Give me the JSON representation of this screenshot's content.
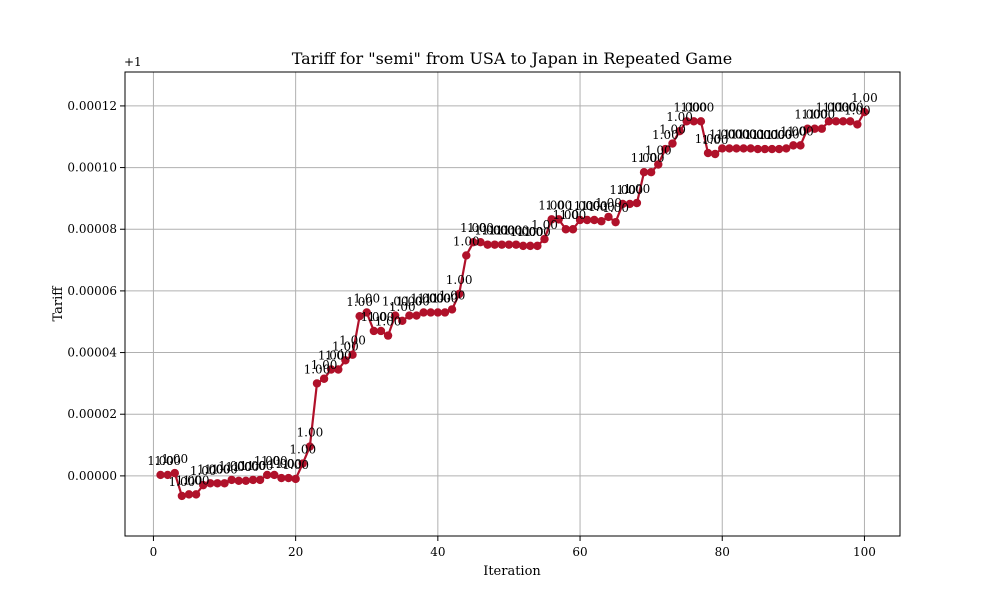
{
  "chart_data": {
    "type": "line",
    "title": "Tariff for \"semi\" from USA to Japan in Repeated Game",
    "xlabel": "Iteration",
    "ylabel": "Tariff",
    "offset_label": "+1",
    "xlim": [
      -4,
      105
    ],
    "ylim": [
      -1.95e-05,
      0.000131
    ],
    "x_ticks": [
      0,
      20,
      40,
      60,
      80,
      100
    ],
    "y_ticks": [
      0.0,
      2e-05,
      4e-05,
      6e-05,
      8e-05,
      0.0001,
      0.00012
    ],
    "y_tick_labels": [
      "0.00000",
      "0.00002",
      "0.00004",
      "0.00006",
      "0.00008",
      "0.00010",
      "0.00012"
    ],
    "grid": true,
    "legend": "none",
    "series": [
      {
        "color": "#b0112a",
        "marker": "circle",
        "point_label": "1.00",
        "x": [
          1,
          2,
          3,
          4,
          5,
          6,
          7,
          8,
          9,
          10,
          11,
          12,
          13,
          14,
          15,
          16,
          17,
          18,
          19,
          20,
          21,
          22,
          23,
          24,
          25,
          26,
          27,
          28,
          29,
          30,
          31,
          32,
          33,
          34,
          35,
          36,
          37,
          38,
          39,
          40,
          41,
          42,
          43,
          44,
          45,
          46,
          47,
          48,
          49,
          50,
          51,
          52,
          53,
          54,
          55,
          56,
          57,
          58,
          59,
          60,
          61,
          62,
          63,
          64,
          65,
          66,
          67,
          68,
          69,
          70,
          71,
          72,
          73,
          74,
          75,
          76,
          77,
          78,
          79,
          80,
          81,
          82,
          83,
          84,
          85,
          86,
          87,
          88,
          89,
          90,
          91,
          92,
          93,
          94,
          95,
          96,
          97,
          98,
          99,
          100
        ],
        "values": [
          3e-07,
          3e-07,
          9e-07,
          -6.5e-06,
          -6e-06,
          -6e-06,
          -3e-06,
          -2.4e-06,
          -2.4e-06,
          -2.4e-06,
          -1.3e-06,
          -1.6e-06,
          -1.6e-06,
          -1.3e-06,
          -1.3e-06,
          3e-07,
          3e-07,
          -7e-07,
          -7e-07,
          -1e-06,
          4e-06,
          9.5e-06,
          3e-05,
          3.15e-05,
          3.45e-05,
          3.45e-05,
          3.75e-05,
          3.93e-05,
          5.18e-05,
          5.3e-05,
          4.7e-05,
          4.7e-05,
          4.55e-05,
          5.2e-05,
          5.03e-05,
          5.2e-05,
          5.2e-05,
          5.3e-05,
          5.3e-05,
          5.3e-05,
          5.3e-05,
          5.4e-05,
          5.9e-05,
          7.15e-05,
          7.58e-05,
          7.58e-05,
          7.5e-05,
          7.5e-05,
          7.5e-05,
          7.5e-05,
          7.5e-05,
          7.46e-05,
          7.46e-05,
          7.46e-05,
          7.68e-05,
          8.32e-05,
          8.32e-05,
          8e-05,
          8e-05,
          8.3e-05,
          8.3e-05,
          8.3e-05,
          8.26e-05,
          8.4e-05,
          8.23e-05,
          8.82e-05,
          8.82e-05,
          8.85e-05,
          9.85e-05,
          9.85e-05,
          0.000101,
          0.000106,
          0.0001078,
          0.0001118,
          0.000115,
          0.000115,
          0.000115,
          0.0001047,
          0.0001044,
          0.0001062,
          0.0001062,
          0.0001062,
          0.0001062,
          0.0001062,
          0.000106,
          0.000106,
          0.000106,
          0.000106,
          0.0001062,
          0.0001072,
          0.0001072,
          0.0001126,
          0.0001126,
          0.0001126,
          0.000115,
          0.000115,
          0.000115,
          0.000115,
          0.000114,
          0.000118
        ]
      }
    ]
  }
}
